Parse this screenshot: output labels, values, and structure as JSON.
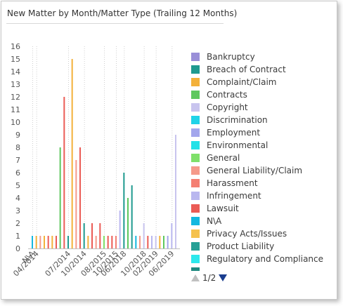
{
  "title": "New Matter by Month/Matter Type (Trailing 12 Months)",
  "legend": {
    "items": [
      {
        "label": "Bankruptcy",
        "color": "#9a8fd8"
      },
      {
        "label": "Breach of Contract",
        "color": "#1f9a8f"
      },
      {
        "label": "Complaint/Claim",
        "color": "#f3b13a"
      },
      {
        "label": "Contracts",
        "color": "#5ec85e"
      },
      {
        "label": "Copyright",
        "color": "#c8c4ee"
      },
      {
        "label": "Discrimination",
        "color": "#1fd3e8"
      },
      {
        "label": "Employment",
        "color": "#a3a6ec"
      },
      {
        "label": "Environmental",
        "color": "#22e1e8"
      },
      {
        "label": "General",
        "color": "#7fe06a"
      },
      {
        "label": "General Liability/Claim",
        "color": "#f59a8a"
      },
      {
        "label": "Harassment",
        "color": "#f47f73"
      },
      {
        "label": "Infringement",
        "color": "#b9b7ef"
      },
      {
        "label": "Lawsuit",
        "color": "#eb5b55"
      },
      {
        "label": "N\\A",
        "color": "#14b8e0"
      },
      {
        "label": "Privacy Acts/Issues",
        "color": "#f5c24e"
      },
      {
        "label": "Product Liability",
        "color": "#26a096"
      },
      {
        "label": "Regulatory and Compliance",
        "color": "#2ce8ec"
      },
      {
        "label": "",
        "color": "#1f8a80"
      }
    ],
    "pager": {
      "text": "1/2"
    }
  },
  "chart_data": {
    "type": "bar",
    "title": "New Matter by Month/Matter Type (Trailing 12 Months)",
    "xlabel": "",
    "ylabel": "",
    "ylim": [
      0,
      16
    ],
    "yticks": [
      0,
      1,
      2,
      3,
      4,
      5,
      6,
      7,
      8,
      9,
      10,
      11,
      12,
      13,
      14,
      15,
      16
    ],
    "x_tick_labels": [
      "N\\A",
      "04/2014",
      "07/2014",
      "10/2014",
      "08/2015",
      "10/2015",
      "06/2018",
      "10/2018",
      "02/2019",
      "06/2019"
    ],
    "grid": "vertical dotted",
    "legend_position": "right",
    "bars": [
      {
        "category": "N\\A",
        "series": "N\\A",
        "value": 1
      },
      {
        "category": "04/2014",
        "series": "Complaint/Claim",
        "value": 1
      },
      {
        "category": "04/2014",
        "series": "General Liability/Claim",
        "value": 1
      },
      {
        "category": "04/2014",
        "series": "Complaint/Claim",
        "value": 1
      },
      {
        "category": "04/2014",
        "series": "Lawsuit",
        "value": 1
      },
      {
        "category": "04/2014",
        "series": "Complaint/Claim",
        "value": 1
      },
      {
        "category": "04/2014",
        "series": "Lawsuit",
        "value": 1
      },
      {
        "category": "04/2014",
        "series": "Contracts",
        "value": 8
      },
      {
        "category": "04/2014",
        "series": "Lawsuit",
        "value": 12
      },
      {
        "category": "07/2014",
        "series": "Breach of Contract",
        "value": 1
      },
      {
        "category": "07/2014",
        "series": "Complaint/Claim",
        "value": 15
      },
      {
        "category": "07/2014",
        "series": "General Liability/Claim",
        "value": 7
      },
      {
        "category": "07/2014",
        "series": "Lawsuit",
        "value": 8
      },
      {
        "category": "10/2014",
        "series": "Breach of Contract",
        "value": 2
      },
      {
        "category": "10/2014",
        "series": "Complaint/Claim",
        "value": 1
      },
      {
        "category": "10/2014",
        "series": "Lawsuit",
        "value": 2
      },
      {
        "category": "10/2014",
        "series": "General Liability/Claim",
        "value": 1
      },
      {
        "category": "10/2014",
        "series": "Lawsuit",
        "value": 2
      },
      {
        "category": "08/2015",
        "series": "General",
        "value": 1
      },
      {
        "category": "08/2015",
        "series": "Lawsuit",
        "value": 1
      },
      {
        "category": "08/2015",
        "series": "Lawsuit",
        "value": 1
      },
      {
        "category": "10/2015",
        "series": "Harassment",
        "value": 1
      },
      {
        "category": "10/2015",
        "series": "Infringement",
        "value": 3
      },
      {
        "category": "06/2018",
        "series": "Breach of Contract",
        "value": 6
      },
      {
        "category": "06/2018",
        "series": "Contracts",
        "value": 4
      },
      {
        "category": "06/2018",
        "series": "Breach of Contract",
        "value": 5
      },
      {
        "category": "06/2018",
        "series": "N\\A",
        "value": 1
      },
      {
        "category": "06/2018",
        "series": "General Liability/Claim",
        "value": 1
      },
      {
        "category": "10/2018",
        "series": "Copyright",
        "value": 2
      },
      {
        "category": "10/2018",
        "series": "Lawsuit",
        "value": 1
      },
      {
        "category": "10/2018",
        "series": "Infringement",
        "value": 1
      },
      {
        "category": "02/2019",
        "series": "Copyright",
        "value": 1
      },
      {
        "category": "02/2019",
        "series": "Complaint/Claim",
        "value": 1
      },
      {
        "category": "02/2019",
        "series": "Contracts",
        "value": 1
      },
      {
        "category": "02/2019",
        "series": "Employment",
        "value": 1
      },
      {
        "category": "06/2019",
        "series": "Infringement",
        "value": 2
      },
      {
        "category": "06/2019",
        "series": "Copyright",
        "value": 9
      }
    ]
  }
}
